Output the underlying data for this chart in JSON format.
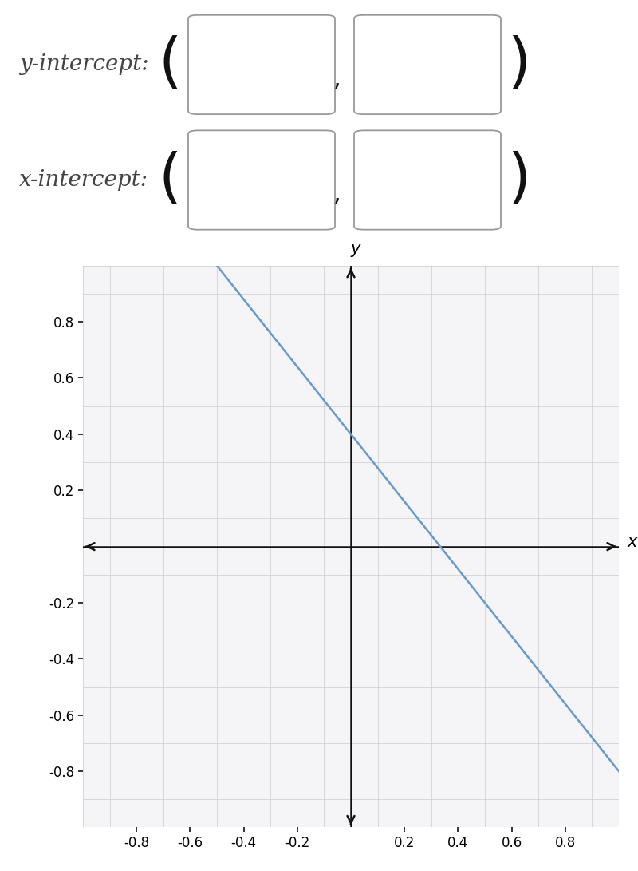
{
  "line_slope": -1.2,
  "line_intercept": 0.4,
  "line_color": "#6699cc",
  "line_width": 1.8,
  "xlim": [
    -1.0,
    1.0
  ],
  "ylim": [
    -1.0,
    1.0
  ],
  "xticks": [
    -0.8,
    -0.6,
    -0.4,
    -0.2,
    0.2,
    0.4,
    0.6,
    0.8
  ],
  "yticks": [
    -0.8,
    -0.6,
    -0.4,
    -0.2,
    0.2,
    0.4,
    0.6,
    0.8
  ],
  "xlabel": "x",
  "ylabel": "y",
  "grid_color": "#cccccc",
  "grid_linewidth": 0.5,
  "axis_color": "#111111",
  "tick_label_fontsize": 12,
  "axis_label_fontsize": 15,
  "background_color": "#ffffff",
  "plot_bg_color": "#f5f5f8",
  "y_intercept_label": "y-intercept:",
  "x_intercept_label": "x-intercept:",
  "label_fontsize": 20,
  "paren_fontsize": 52,
  "comma_fontsize": 20,
  "box_edge_color": "#999999",
  "box_face_color": "#ffffff",
  "fig_width": 8.0,
  "fig_height": 10.91
}
